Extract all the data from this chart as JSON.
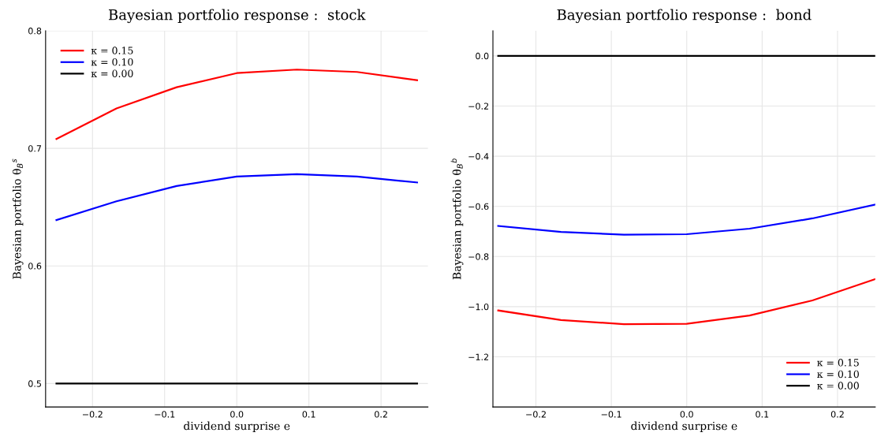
{
  "chart_data": [
    {
      "type": "line",
      "title": "Bayesian portfolio response :  stock",
      "xlabel": "dividend surprise e",
      "ylabel": "Bayesian portfolio θ$_{B}$$^{s}$",
      "x": [
        -0.25,
        -0.1667,
        -0.0833,
        0,
        0.0833,
        0.1667,
        0.25
      ],
      "series": [
        {
          "name": "κ = 0.15",
          "color": "#ff0000",
          "values": [
            0.708,
            0.734,
            0.752,
            0.764,
            0.767,
            0.765,
            0.758
          ]
        },
        {
          "name": "κ = 0.10",
          "color": "#0000ff",
          "values": [
            0.639,
            0.655,
            0.668,
            0.676,
            0.678,
            0.676,
            0.671
          ]
        },
        {
          "name": "κ = 0.00",
          "color": "#000000",
          "values": [
            0.5,
            0.5,
            0.5,
            0.5,
            0.5,
            0.5,
            0.5
          ]
        }
      ],
      "xlim": [
        -0.265,
        0.265
      ],
      "ylim": [
        0.48,
        0.8
      ],
      "xticks": [
        {
          "value": -0.2,
          "label": "−0.2"
        },
        {
          "value": -0.1,
          "label": "−0.1"
        },
        {
          "value": 0,
          "label": "0.0"
        },
        {
          "value": 0.1,
          "label": "0.1"
        },
        {
          "value": 0.2,
          "label": "0.2"
        }
      ],
      "yticks": [
        0.5,
        0.6,
        0.7,
        0.8
      ],
      "grid": true,
      "legend": "top left"
    },
    {
      "type": "line",
      "title": "Bayesian portfolio response :  bond",
      "xlabel": "dividend surprise e",
      "ylabel": "Bayesian portfolio θ$_{B}$$^{b}$",
      "x": [
        -0.25,
        -0.1667,
        -0.0833,
        0,
        0.0833,
        0.1667,
        0.25
      ],
      "series": [
        {
          "name": "κ = 0.15",
          "color": "#ff0000",
          "values": [
            -1.015,
            -1.053,
            -1.07,
            -1.068,
            -1.035,
            -0.975,
            -0.89
          ]
        },
        {
          "name": "κ = 0.10",
          "color": "#0000ff",
          "values": [
            -0.678,
            -0.702,
            -0.713,
            -0.711,
            -0.689,
            -0.648,
            -0.593
          ]
        },
        {
          "name": "κ = 0.00",
          "color": "#000000",
          "values": [
            0,
            0,
            0,
            0,
            0,
            0,
            0
          ]
        }
      ],
      "xlim": [
        -0.257,
        0.25
      ],
      "ylim": [
        -1.4,
        0.1
      ],
      "xticks": [
        {
          "value": -0.2,
          "label": "−0.2"
        },
        {
          "value": -0.1,
          "label": "−0.1"
        },
        {
          "value": 0,
          "label": "0.0"
        },
        {
          "value": 0.1,
          "label": "0.1"
        },
        {
          "value": 0.2,
          "label": "0.2"
        }
      ],
      "yticks": [
        {
          "value": -1.2,
          "label": "−1.2"
        },
        {
          "value": -1.0,
          "label": "−1.0"
        },
        {
          "value": -0.8,
          "label": "−0.8"
        },
        {
          "value": -0.6,
          "label": "−0.6"
        },
        {
          "value": -0.4,
          "label": "−0.4"
        },
        {
          "value": -0.2,
          "label": "−0.2"
        },
        {
          "value": 0,
          "label": "0.0"
        }
      ],
      "grid": true,
      "legend": "bottom right"
    }
  ]
}
